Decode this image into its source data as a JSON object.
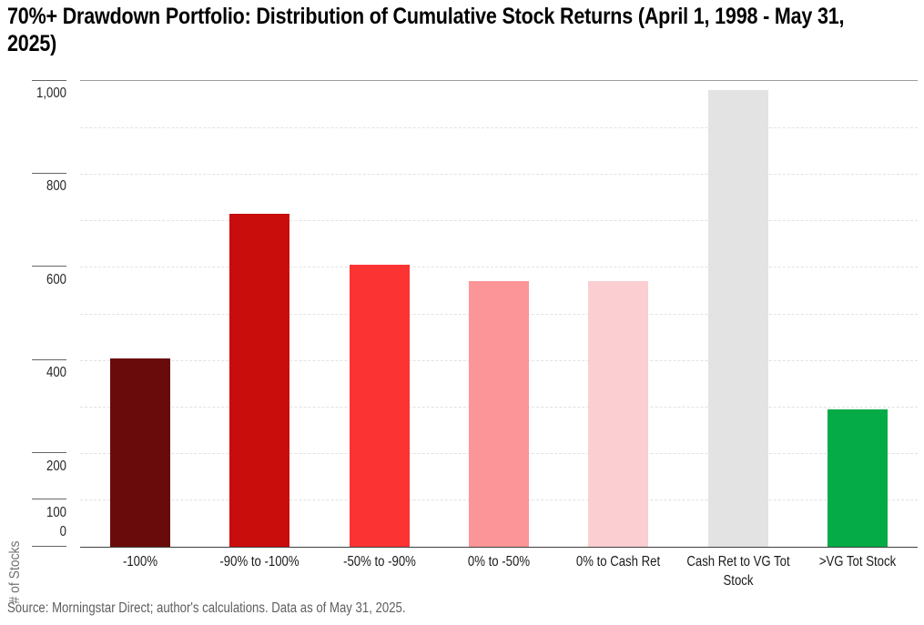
{
  "header": {
    "title_lines": [
      "70%+ Drawdown Portfolio: Distribution of Cumulative Stock Returns (April 1, 1998 - May 31,",
      "2025)"
    ]
  },
  "chart_data": {
    "type": "bar",
    "title": "70%+ Drawdown Portfolio: Distribution of Cumulative Stock Returns (April 1, 1998 - May 31, 2025)",
    "xlabel": "",
    "ylabel": "# of Stocks",
    "categories": [
      "-100%",
      "-90% to -100%",
      "-50% to -90%",
      "0% to -50%",
      "0% to Cash Ret",
      "Cash Ret to VG Tot Stock",
      ">VG Tot Stock"
    ],
    "values": [
      405,
      715,
      605,
      570,
      570,
      980,
      295
    ],
    "bar_colors": [
      "#6A0B0B",
      "#C90C0C",
      "#FB3333",
      "#FB9598",
      "#FBCED1",
      "#E3E3E3",
      "#05AB46"
    ],
    "ylim": [
      0,
      1000
    ],
    "y_tick_labels": [
      "1,000",
      "800",
      "600",
      "400",
      "200",
      "100",
      "0"
    ],
    "y_tick_values": [
      1000,
      800,
      600,
      400,
      200,
      100,
      0
    ],
    "gridline_values": [
      900,
      800,
      700,
      600,
      500,
      400,
      300,
      200,
      100
    ],
    "grid": "horizontal dashed, solid rule at 1000, dark baseline at 0",
    "legend": "none",
    "source": "Source: Morningstar Direct; author's calculations. Data as of May 31, 2025."
  },
  "colors": {
    "top_rule": "#9e9e9e",
    "baseline": "#3f3f3f",
    "tick_line": "#666666",
    "gridline": "#e2e2e2",
    "title_text": "#000000",
    "axis_text": "#262626",
    "category_text": "#1a1a1a",
    "muted_text": "#5e5e60"
  }
}
